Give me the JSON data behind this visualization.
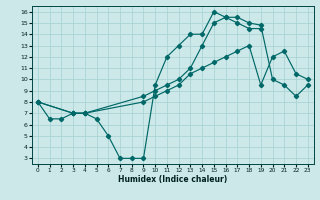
{
  "xlabel": "Humidex (Indice chaleur)",
  "bg_color": "#cce8e8",
  "line_color": "#006868",
  "grid_color": "#aad4d4",
  "xlim": [
    -0.5,
    23.5
  ],
  "ylim": [
    2.5,
    16.5
  ],
  "xticks": [
    0,
    1,
    2,
    3,
    4,
    5,
    6,
    7,
    8,
    9,
    10,
    11,
    12,
    13,
    14,
    15,
    16,
    17,
    18,
    19,
    20,
    21,
    22,
    23
  ],
  "yticks": [
    3,
    4,
    5,
    6,
    7,
    8,
    9,
    10,
    11,
    12,
    13,
    14,
    15,
    16
  ],
  "line1_x": [
    0,
    1,
    2,
    3,
    4,
    5,
    6,
    7,
    8,
    9,
    10,
    11,
    12,
    13,
    14,
    15,
    16,
    17,
    18,
    19,
    20,
    21,
    22,
    23
  ],
  "line1_y": [
    8,
    6.5,
    6.5,
    7,
    7,
    6.5,
    5,
    3,
    3,
    3,
    9.5,
    12,
    13,
    14,
    14,
    16,
    15.5,
    15.5,
    15,
    14.8,
    10,
    9.5,
    8.5,
    9.5
  ],
  "line2_x": [
    0,
    3,
    4,
    9,
    10,
    11,
    12,
    13,
    14,
    15,
    16,
    17,
    18,
    19,
    20,
    21,
    22,
    23
  ],
  "line2_y": [
    8,
    7,
    7,
    8,
    8.5,
    9,
    9.5,
    10.5,
    11,
    11.5,
    12,
    12.5,
    13,
    9.5,
    12,
    12.5,
    10.5,
    10
  ],
  "line3_x": [
    0,
    3,
    4,
    9,
    10,
    11,
    12,
    13,
    14,
    15,
    16,
    17,
    18,
    19
  ],
  "line3_y": [
    8,
    7,
    7,
    8.5,
    9,
    9.5,
    10,
    11,
    13,
    15,
    15.5,
    15,
    14.5,
    14.5
  ]
}
